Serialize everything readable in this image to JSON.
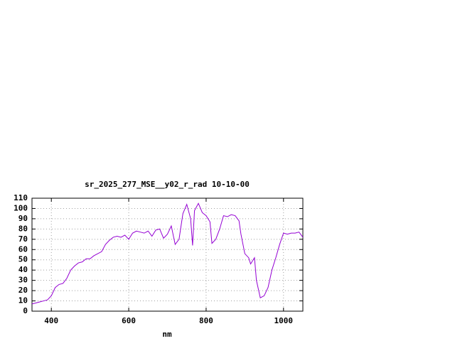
{
  "chart_data": {
    "type": "line",
    "title": "sr_2025_277_MSE__y02_r_rad 10-10-00",
    "x_label": "nm",
    "x": [
      350,
      370,
      380,
      390,
      400,
      410,
      420,
      430,
      440,
      450,
      460,
      470,
      480,
      490,
      500,
      510,
      520,
      530,
      540,
      550,
      560,
      570,
      580,
      590,
      600,
      610,
      620,
      630,
      640,
      650,
      660,
      670,
      680,
      690,
      700,
      710,
      720,
      730,
      740,
      750,
      760,
      765,
      770,
      780,
      790,
      800,
      810,
      815,
      825,
      835,
      845,
      855,
      865,
      875,
      885,
      890,
      900,
      910,
      915,
      920,
      925,
      930,
      940,
      950,
      960,
      970,
      980,
      990,
      1000,
      1010,
      1020,
      1030,
      1040,
      1050
    ],
    "series": [
      {
        "color": "#9400d3",
        "values": [
          7,
          9,
          10,
          11,
          15,
          23,
          26,
          27,
          32,
          40,
          44,
          47,
          48,
          51,
          51,
          54,
          56,
          58,
          65,
          69,
          72,
          73,
          72,
          74,
          70,
          76,
          78,
          77,
          76,
          78,
          73,
          79,
          80,
          71,
          75,
          83,
          65,
          70,
          95,
          104,
          90,
          64,
          98,
          105,
          96,
          93,
          87,
          66,
          70,
          80,
          93,
          92,
          94,
          93,
          88,
          75,
          56,
          52,
          46,
          49,
          52,
          30,
          13,
          15,
          23,
          40,
          52,
          65,
          76,
          75,
          76,
          76,
          77,
          72
        ]
      }
    ],
    "xlim": [
      350,
      1050
    ],
    "xticks": [
      400,
      600,
      800,
      1000
    ],
    "ylim": [
      0,
      110
    ],
    "yticks": [
      0,
      10,
      20,
      30,
      40,
      50,
      60,
      70,
      80,
      90,
      100,
      110
    ],
    "grid": true
  }
}
